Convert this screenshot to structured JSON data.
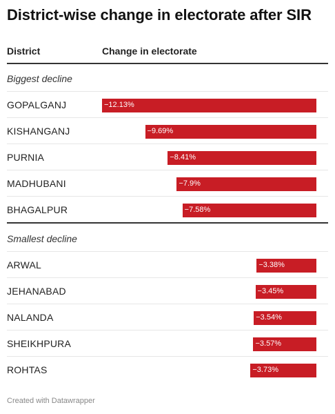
{
  "title": "District-wise change in electorate after SIR",
  "columns": {
    "district": "District",
    "change": "Change in electorate"
  },
  "sections": {
    "biggest": "Biggest decline",
    "smallest": "Smallest decline"
  },
  "footer": "Created with Datawrapper",
  "colors": {
    "bar": "#c81d25",
    "bar_label": "#ffffff"
  },
  "chart_data": {
    "type": "bar",
    "orientation": "horizontal",
    "xlim": [
      -12.13,
      0
    ],
    "groups": [
      {
        "name": "Biggest decline",
        "categories": [
          "GOPALGANJ",
          "KISHANGANJ",
          "PURNIA",
          "MADHUBANI",
          "BHAGALPUR"
        ],
        "values": [
          -12.13,
          -9.69,
          -8.41,
          -7.9,
          -7.58
        ],
        "labels": [
          "−12.13%",
          "−9.69%",
          "−8.41%",
          "−7.9%",
          "−7.58%"
        ]
      },
      {
        "name": "Smallest decline",
        "categories": [
          "ARWAL",
          "JEHANABAD",
          "NALANDA",
          "SHEIKHPURA",
          "ROHTAS"
        ],
        "values": [
          -3.38,
          -3.45,
          -3.54,
          -3.57,
          -3.73
        ],
        "labels": [
          "−3.38%",
          "−3.45%",
          "−3.54%",
          "−3.57%",
          "−3.73%"
        ]
      }
    ]
  }
}
